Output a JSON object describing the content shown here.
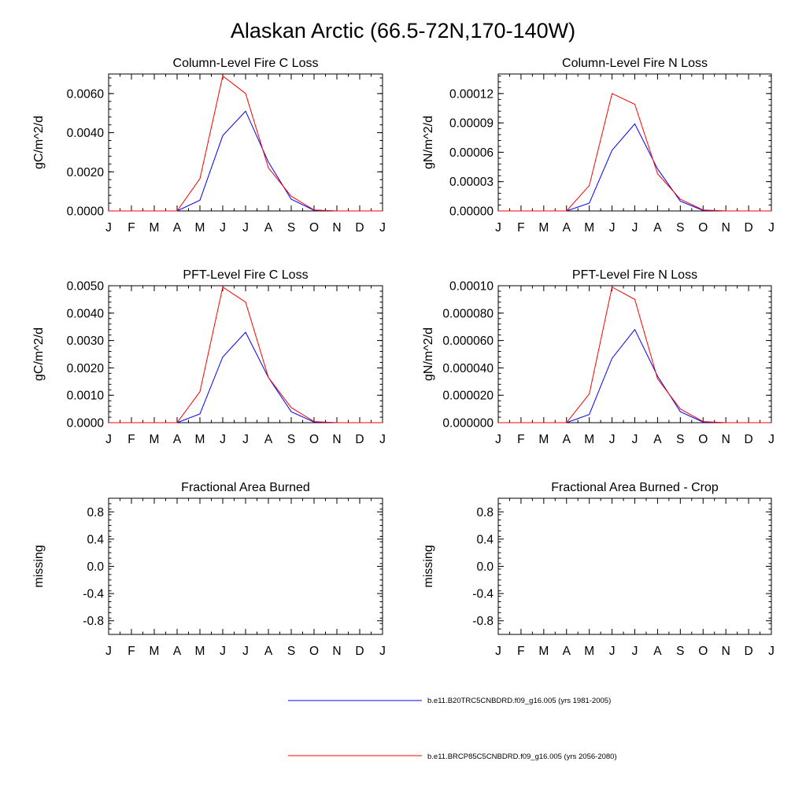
{
  "figure": {
    "title": "Alaskan Arctic (66.5-72N,170-140W)",
    "legend": [
      {
        "label": "b.e11.B20TRC5CNBDRD.f09_g16.005 (yrs 1981-2005)",
        "color": "#0000ff"
      },
      {
        "label": "b.e11.BRCP85C5CNBDRD.f09_g16.005 (yrs 2056-2080)",
        "color": "#ff0000"
      }
    ]
  },
  "chart_data": [
    {
      "type": "line",
      "title": "Column-Level Fire C Loss",
      "ylabel": "gC/m^2/d",
      "x_ticks": [
        "J",
        "F",
        "M",
        "A",
        "M",
        "J",
        "J",
        "A",
        "S",
        "O",
        "N",
        "D",
        "J"
      ],
      "ylim": [
        0,
        0.007
      ],
      "y_ticks": [
        "0.0000",
        "0.0020",
        "0.0040",
        "0.0060"
      ],
      "y_tick_values": [
        0,
        0.002,
        0.004,
        0.006
      ],
      "series": [
        {
          "color": "#0000ff",
          "values": [
            0,
            0,
            0,
            0,
            0.00055,
            0.00385,
            0.0051,
            0.0025,
            0.0006,
            3e-05,
            0,
            0,
            0
          ]
        },
        {
          "color": "#ff0000",
          "values": [
            0,
            0,
            0,
            0,
            0.00165,
            0.0069,
            0.006,
            0.0022,
            0.00075,
            5e-05,
            0,
            0,
            0
          ]
        }
      ]
    },
    {
      "type": "line",
      "title": "Column-Level Fire N Loss",
      "ylabel": "gN/m^2/d",
      "x_ticks": [
        "J",
        "F",
        "M",
        "A",
        "M",
        "J",
        "J",
        "A",
        "S",
        "O",
        "N",
        "D",
        "J"
      ],
      "ylim": [
        0,
        0.00014
      ],
      "y_ticks": [
        "0.00000",
        "0.00003",
        "0.00006",
        "0.00009",
        "0.00012"
      ],
      "y_tick_values": [
        0,
        3e-05,
        6e-05,
        9e-05,
        0.00012
      ],
      "series": [
        {
          "color": "#0000ff",
          "values": [
            0,
            0,
            0,
            0,
            8e-06,
            6.2e-05,
            8.9e-05,
            4.3e-05,
            1e-05,
            5e-07,
            0,
            0,
            0
          ]
        },
        {
          "color": "#ff0000",
          "values": [
            0,
            0,
            0,
            0,
            2.6e-05,
            0.00012,
            0.000109,
            3.8e-05,
            1.2e-05,
            1e-06,
            0,
            0,
            0
          ]
        }
      ]
    },
    {
      "type": "line",
      "title": "PFT-Level Fire C Loss",
      "ylabel": "gC/m^2/d",
      "x_ticks": [
        "J",
        "F",
        "M",
        "A",
        "M",
        "J",
        "J",
        "A",
        "S",
        "O",
        "N",
        "D",
        "J"
      ],
      "ylim": [
        0,
        0.005
      ],
      "y_ticks": [
        "0.0000",
        "0.0010",
        "0.0020",
        "0.0030",
        "0.0040",
        "0.0050"
      ],
      "y_tick_values": [
        0,
        0.001,
        0.002,
        0.003,
        0.004,
        0.005
      ],
      "series": [
        {
          "color": "#0000ff",
          "values": [
            0,
            0,
            0,
            0,
            0.00032,
            0.0024,
            0.0033,
            0.00165,
            0.0004,
            2e-05,
            0,
            0,
            0
          ]
        },
        {
          "color": "#ff0000",
          "values": [
            0,
            0,
            0,
            0,
            0.00113,
            0.00495,
            0.0044,
            0.00165,
            0.00055,
            4e-05,
            0,
            0,
            0
          ]
        }
      ]
    },
    {
      "type": "line",
      "title": "PFT-Level Fire N Loss",
      "ylabel": "gN/m^2/d",
      "x_ticks": [
        "J",
        "F",
        "M",
        "A",
        "M",
        "J",
        "J",
        "A",
        "S",
        "O",
        "N",
        "D",
        "J"
      ],
      "ylim": [
        0,
        0.0001
      ],
      "y_ticks": [
        "0.000000",
        "0.000020",
        "0.000040",
        "0.000060",
        "0.000080",
        "0.00010"
      ],
      "y_tick_values": [
        0,
        2e-05,
        4e-05,
        6e-05,
        8e-05,
        0.0001
      ],
      "series": [
        {
          "color": "#0000ff",
          "values": [
            0,
            0,
            0,
            0,
            6e-06,
            4.7e-05,
            6.8e-05,
            3.4e-05,
            8e-06,
            4e-07,
            0,
            0,
            0
          ]
        },
        {
          "color": "#ff0000",
          "values": [
            0,
            0,
            0,
            0,
            2.1e-05,
            9.9e-05,
            9e-05,
            3.2e-05,
            1e-05,
            8e-07,
            0,
            0,
            0
          ]
        }
      ]
    },
    {
      "type": "line",
      "title": "Fractional Area Burned",
      "ylabel": "missing",
      "x_ticks": [
        "J",
        "F",
        "M",
        "A",
        "M",
        "J",
        "J",
        "A",
        "S",
        "O",
        "N",
        "D",
        "J"
      ],
      "ylim": [
        -1,
        1
      ],
      "y_ticks": [
        "-0.8",
        "-0.4",
        "0.0",
        "0.4",
        "0.8"
      ],
      "y_tick_values": [
        -0.8,
        -0.4,
        0,
        0.4,
        0.8
      ],
      "series": []
    },
    {
      "type": "line",
      "title": "Fractional Area Burned - Crop",
      "ylabel": "missing",
      "x_ticks": [
        "J",
        "F",
        "M",
        "A",
        "M",
        "J",
        "J",
        "A",
        "S",
        "O",
        "N",
        "D",
        "J"
      ],
      "ylim": [
        -1,
        1
      ],
      "y_ticks": [
        "-0.8",
        "-0.4",
        "0.0",
        "0.4",
        "0.8"
      ],
      "y_tick_values": [
        -0.8,
        -0.4,
        0,
        0.4,
        0.8
      ],
      "series": []
    }
  ]
}
